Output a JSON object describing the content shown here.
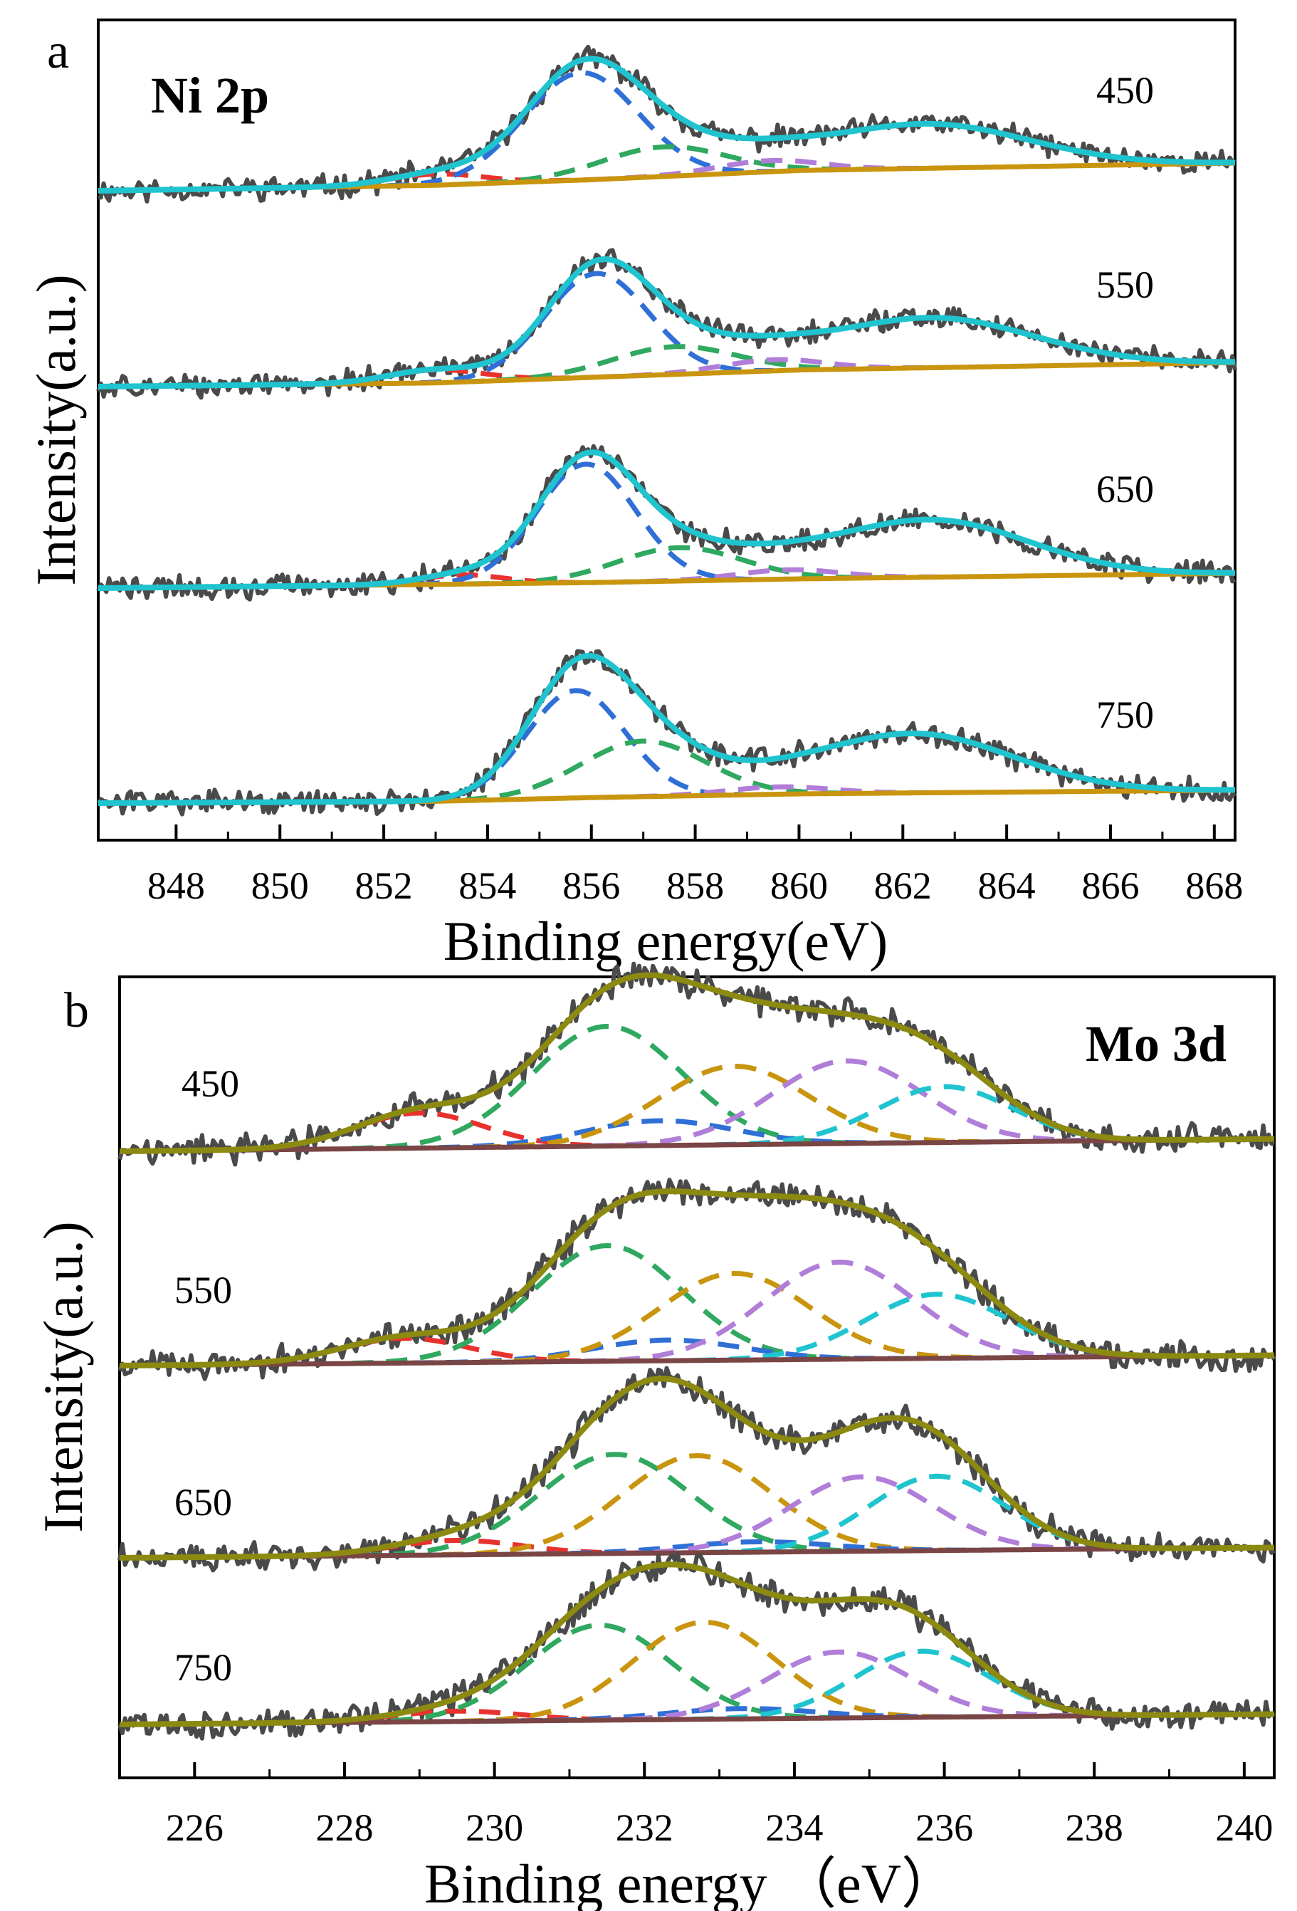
{
  "chart_data": [
    {
      "type": "line",
      "panel_label": "a",
      "title": "Ni 2p",
      "xlabel": "Binding energy(eV)",
      "ylabel": "Intensity(a.u.)",
      "xlim": [
        846.5,
        868.4
      ],
      "x_ticks": [
        848,
        850,
        852,
        854,
        856,
        858,
        860,
        862,
        864,
        866,
        868
      ],
      "y_ticks": false,
      "grid": false,
      "legend": "none",
      "colors": {
        "raw": "#4a4a4a",
        "envelope": "#1fc4cf",
        "background": "#c9950f",
        "component_red": "#e8322e",
        "component_blue": "#2f6fd6",
        "component_green": "#2fa860",
        "component_purple": "#b07ed8"
      },
      "series": [
        {
          "name": "450",
          "baseline": [
            [
              846.5,
              0.0
            ],
            [
              853.0,
              0.03
            ],
            [
              856.0,
              0.06
            ],
            [
              860.0,
              0.11
            ],
            [
              868.4,
              0.15
            ]
          ],
          "peaks": [
            {
              "color": "red",
              "center": 853.0,
              "height": 0.06,
              "width": 0.9
            },
            {
              "color": "blue",
              "center": 855.8,
              "height": 0.58,
              "width": 1.1
            },
            {
              "color": "green",
              "center": 857.4,
              "height": 0.16,
              "width": 1.2
            },
            {
              "color": "purple",
              "center": 859.4,
              "height": 0.06,
              "width": 1.0
            },
            {
              "color": "sat",
              "center": 862.4,
              "height": 0.24,
              "width": 2.0
            }
          ]
        },
        {
          "name": "550",
          "baseline": [
            [
              846.5,
              0.0
            ],
            [
              853.0,
              0.02
            ],
            [
              856.0,
              0.05
            ],
            [
              860.0,
              0.09
            ],
            [
              868.4,
              0.13
            ]
          ],
          "peaks": [
            {
              "color": "red",
              "center": 853.0,
              "height": 0.07,
              "width": 0.9
            },
            {
              "color": "blue",
              "center": 856.1,
              "height": 0.56,
              "width": 1.0
            },
            {
              "color": "green",
              "center": 857.6,
              "height": 0.15,
              "width": 1.2
            },
            {
              "color": "purple",
              "center": 859.5,
              "height": 0.06,
              "width": 1.0
            },
            {
              "color": "sat",
              "center": 862.5,
              "height": 0.27,
              "width": 2.0
            }
          ]
        },
        {
          "name": "650",
          "baseline": [
            [
              846.5,
              0.0
            ],
            [
              853.0,
              0.02
            ],
            [
              856.0,
              0.03
            ],
            [
              860.0,
              0.05
            ],
            [
              868.4,
              0.08
            ]
          ],
          "peaks": [
            {
              "color": "red",
              "center": 853.5,
              "height": 0.05,
              "width": 0.8
            },
            {
              "color": "blue",
              "center": 855.9,
              "height": 0.64,
              "width": 0.95
            },
            {
              "color": "green",
              "center": 857.7,
              "height": 0.18,
              "width": 1.2
            },
            {
              "color": "purple",
              "center": 859.8,
              "height": 0.05,
              "width": 1.0
            },
            {
              "color": "sat",
              "center": 862.5,
              "height": 0.31,
              "width": 1.9
            }
          ]
        },
        {
          "name": "750",
          "baseline": [
            [
              846.5,
              0.0
            ],
            [
              853.0,
              0.01
            ],
            [
              856.0,
              0.03
            ],
            [
              860.0,
              0.05
            ],
            [
              868.4,
              0.07
            ]
          ],
          "peaks": [
            {
              "color": "blue",
              "center": 855.7,
              "height": 0.58,
              "width": 0.95
            },
            {
              "color": "green",
              "center": 857.0,
              "height": 0.3,
              "width": 1.2
            },
            {
              "color": "purple",
              "center": 859.6,
              "height": 0.04,
              "width": 1.0
            },
            {
              "color": "sat",
              "center": 862.2,
              "height": 0.32,
              "width": 1.9
            }
          ]
        }
      ]
    },
    {
      "type": "line",
      "panel_label": "b",
      "title": "Mo 3d",
      "xlabel": "Binding energy （eV）",
      "ylabel": "Intensity(a.u.)",
      "xlim": [
        225.0,
        240.4
      ],
      "x_ticks": [
        226,
        228,
        230,
        232,
        234,
        236,
        238,
        240
      ],
      "y_ticks": false,
      "grid": false,
      "legend": "none",
      "colors": {
        "raw": "#4a4a4a",
        "envelope": "#8c8a10",
        "background": "#7a4545",
        "component_red": "#e8322e",
        "component_green": "#2fa860",
        "component_blue": "#2f6fd6",
        "component_orange": "#c9950f",
        "component_purple": "#b07ed8",
        "component_cyan": "#1fc4cf"
      },
      "series": [
        {
          "name": "450",
          "baseline": [
            [
              225.0,
              0.0
            ],
            [
              240.4,
              0.06
            ]
          ],
          "peaks": [
            {
              "color": "red",
              "center": 229.0,
              "height": 0.17,
              "width": 0.85
            },
            {
              "color": "green",
              "center": 231.5,
              "height": 0.58,
              "width": 1.0
            },
            {
              "color": "blue",
              "center": 232.2,
              "height": 0.12,
              "width": 1.0
            },
            {
              "color": "orange",
              "center": 233.2,
              "height": 0.38,
              "width": 1.0
            },
            {
              "color": "purple",
              "center": 234.7,
              "height": 0.4,
              "width": 1.0
            },
            {
              "color": "cyan",
              "center": 236.0,
              "height": 0.27,
              "width": 0.9
            }
          ]
        },
        {
          "name": "550",
          "baseline": [
            [
              225.0,
              0.0
            ],
            [
              240.4,
              0.05
            ]
          ],
          "peaks": [
            {
              "color": "red",
              "center": 228.8,
              "height": 0.12,
              "width": 0.85
            },
            {
              "color": "green",
              "center": 231.5,
              "height": 0.56,
              "width": 1.0
            },
            {
              "color": "blue",
              "center": 232.3,
              "height": 0.1,
              "width": 1.0
            },
            {
              "color": "orange",
              "center": 233.2,
              "height": 0.42,
              "width": 1.0
            },
            {
              "color": "purple",
              "center": 234.6,
              "height": 0.47,
              "width": 1.0
            },
            {
              "color": "cyan",
              "center": 235.9,
              "height": 0.31,
              "width": 0.95
            }
          ]
        },
        {
          "name": "650",
          "baseline": [
            [
              225.0,
              0.0
            ],
            [
              240.4,
              0.05
            ]
          ],
          "peaks": [
            {
              "color": "red",
              "center": 229.5,
              "height": 0.07,
              "width": 0.85
            },
            {
              "color": "green",
              "center": 231.6,
              "height": 0.48,
              "width": 1.0
            },
            {
              "color": "orange",
              "center": 232.7,
              "height": 0.47,
              "width": 1.0
            },
            {
              "color": "blue",
              "center": 233.5,
              "height": 0.05,
              "width": 1.0
            },
            {
              "color": "purple",
              "center": 234.9,
              "height": 0.36,
              "width": 0.95
            },
            {
              "color": "cyan",
              "center": 235.9,
              "height": 0.36,
              "width": 0.9
            }
          ]
        },
        {
          "name": "750",
          "baseline": [
            [
              225.0,
              0.0
            ],
            [
              240.4,
              0.05
            ]
          ],
          "peaks": [
            {
              "color": "red",
              "center": 229.5,
              "height": 0.05,
              "width": 0.85
            },
            {
              "color": "green",
              "center": 231.4,
              "height": 0.46,
              "width": 0.95
            },
            {
              "color": "orange",
              "center": 232.8,
              "height": 0.47,
              "width": 0.95
            },
            {
              "color": "blue",
              "center": 233.3,
              "height": 0.05,
              "width": 1.0
            },
            {
              "color": "purple",
              "center": 234.6,
              "height": 0.32,
              "width": 0.95
            },
            {
              "color": "cyan",
              "center": 235.7,
              "height": 0.32,
              "width": 0.9
            }
          ]
        }
      ]
    }
  ]
}
